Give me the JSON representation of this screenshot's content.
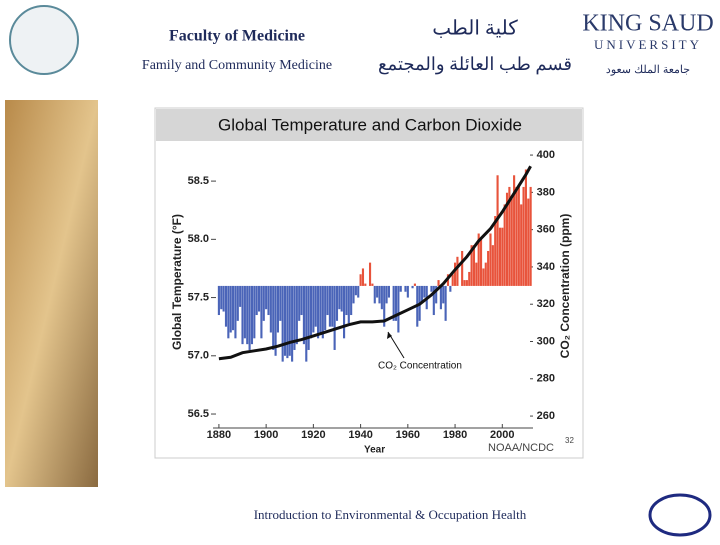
{
  "header": {
    "faculty_en": "Faculty of Medicine",
    "department_en": "Family and Community Medicine",
    "faculty_ar": "كلية الطب",
    "department_ar": "قسم طب العائلة والمجتمع",
    "university_line1": "KING SAUD",
    "university_line2": "UNIVERSITY",
    "university_ar": "جامعة الملك سعود"
  },
  "footer": {
    "text": "Introduction to Environmental & Occupation Health"
  },
  "chart_data": {
    "type": "bar",
    "title": "Global Temperature and Carbon Dioxide",
    "x_label": "Year",
    "y_label": "Global Temperature (°F)",
    "y2_label": "CO₂ Concentration (ppm)",
    "annotation": "CO₂ Concentration",
    "credit": "NOAA/NCDC",
    "slide_number": "32",
    "bar_base": 57.6,
    "color_above": "#e8533b",
    "color_below": "#4a64b8",
    "xlim": [
      1877.5,
      2013
    ],
    "xticks": [
      1880,
      1900,
      1920,
      1940,
      1960,
      1980,
      2000
    ],
    "ylim": [
      56.38,
      58.81
    ],
    "yticks": [
      56.5,
      {
        "value": 57.0,
        "label": "57.0"
      },
      57.5,
      {
        "value": 58.0,
        "label": "58.0"
      },
      58.5
    ],
    "y2lim": [
      253.6,
      405.4
    ],
    "y2ticks": [
      260,
      280,
      300,
      320,
      340,
      360,
      380,
      400
    ],
    "x": [
      1880,
      1881,
      1882,
      1883,
      1884,
      1885,
      1886,
      1887,
      1888,
      1889,
      1890,
      1891,
      1892,
      1893,
      1894,
      1895,
      1896,
      1897,
      1898,
      1899,
      1900,
      1901,
      1902,
      1903,
      1904,
      1905,
      1906,
      1907,
      1908,
      1909,
      1910,
      1911,
      1912,
      1913,
      1914,
      1915,
      1916,
      1917,
      1918,
      1919,
      1920,
      1921,
      1922,
      1923,
      1924,
      1925,
      1926,
      1927,
      1928,
      1929,
      1930,
      1931,
      1932,
      1933,
      1934,
      1935,
      1936,
      1937,
      1938,
      1939,
      1940,
      1941,
      1942,
      1943,
      1944,
      1945,
      1946,
      1947,
      1948,
      1949,
      1950,
      1951,
      1952,
      1953,
      1954,
      1955,
      1956,
      1957,
      1958,
      1959,
      1960,
      1961,
      1962,
      1963,
      1964,
      1965,
      1966,
      1967,
      1968,
      1969,
      1970,
      1971,
      1972,
      1973,
      1974,
      1975,
      1976,
      1977,
      1978,
      1979,
      1980,
      1981,
      1982,
      1983,
      1984,
      1985,
      1986,
      1987,
      1988,
      1989,
      1990,
      1991,
      1992,
      1993,
      1994,
      1995,
      1996,
      1997,
      1998,
      1999,
      2000,
      2001,
      2002,
      2003,
      2004,
      2005,
      2006,
      2007,
      2008,
      2009,
      2010,
      2011,
      2012
    ],
    "series": [
      {
        "name": "Global Temperature",
        "values": [
          57.35,
          57.4,
          57.38,
          57.25,
          57.15,
          57.2,
          57.22,
          57.15,
          57.3,
          57.42,
          57.1,
          57.15,
          57.1,
          57.05,
          57.1,
          57.15,
          57.35,
          57.38,
          57.15,
          57.3,
          57.4,
          57.35,
          57.2,
          57.05,
          57.0,
          57.2,
          57.3,
          56.95,
          57.0,
          56.98,
          57.0,
          56.95,
          57.05,
          57.1,
          57.3,
          57.35,
          57.1,
          56.95,
          57.05,
          57.15,
          57.2,
          57.25,
          57.15,
          57.18,
          57.15,
          57.22,
          57.35,
          57.25,
          57.25,
          57.05,
          57.3,
          57.4,
          57.38,
          57.15,
          57.35,
          57.28,
          57.35,
          57.45,
          57.52,
          57.5,
          57.7,
          57.75,
          57.62,
          57.6,
          57.8,
          57.62,
          57.45,
          57.5,
          57.45,
          57.4,
          57.25,
          57.45,
          57.5,
          57.6,
          57.3,
          57.3,
          57.2,
          57.55,
          57.6,
          57.55,
          57.5,
          57.6,
          57.58,
          57.62,
          57.25,
          57.3,
          57.45,
          57.5,
          57.4,
          57.6,
          57.55,
          57.35,
          57.45,
          57.65,
          57.4,
          57.45,
          57.3,
          57.7,
          57.55,
          57.7,
          57.8,
          57.85,
          57.6,
          57.9,
          57.65,
          57.65,
          57.72,
          57.95,
          57.95,
          57.8,
          58.05,
          58.0,
          57.75,
          57.8,
          57.9,
          58.05,
          57.95,
          58.2,
          58.55,
          58.1,
          58.1,
          58.3,
          58.4,
          58.45,
          58.35,
          58.55,
          58.45,
          58.45,
          58.3,
          58.45,
          58.6,
          58.35,
          58.45
        ]
      },
      {
        "name": "CO₂ Concentration",
        "type": "line",
        "axis": "y2",
        "color": "#111111",
        "x": [
          1880,
          1885,
          1890,
          1895,
          1900,
          1905,
          1910,
          1915,
          1920,
          1925,
          1930,
          1935,
          1940,
          1945,
          1950,
          1955,
          1960,
          1965,
          1970,
          1975,
          1980,
          1985,
          1990,
          1995,
          2000,
          2005,
          2010,
          2012
        ],
        "values": [
          290.7,
          291.5,
          294,
          295,
          296,
          297.5,
          299.5,
          301,
          303,
          305,
          307,
          309,
          310.5,
          310.5,
          311,
          314,
          317,
          320,
          325,
          331,
          338.5,
          345.5,
          354,
          360.5,
          369.5,
          379.5,
          389.5,
          394
        ]
      }
    ]
  }
}
